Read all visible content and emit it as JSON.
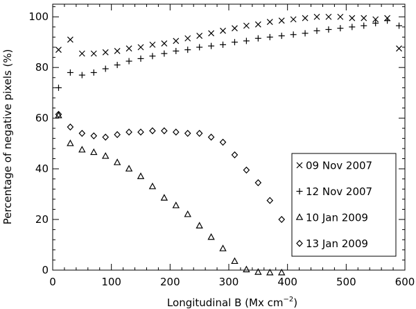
{
  "chart_data": {
    "type": "scatter",
    "xlabel": "Longitudinal B (Mx cm",
    "xlabel_sup": "−2",
    "xlabel_end": ")",
    "ylabel": "Percentage of negative pixels (%)",
    "xlim": [
      0,
      600
    ],
    "ylim": [
      0,
      105
    ],
    "xticks": [
      0,
      100,
      200,
      300,
      400,
      500,
      600
    ],
    "yticks": [
      0,
      20,
      40,
      60,
      80,
      100
    ],
    "grid": false,
    "legend_position": "bottom-right",
    "series": [
      {
        "name": "09 Nov 2007",
        "marker": "x",
        "x": [
          10,
          30,
          50,
          70,
          90,
          110,
          130,
          150,
          170,
          190,
          210,
          230,
          250,
          270,
          290,
          310,
          330,
          350,
          370,
          390,
          410,
          430,
          450,
          470,
          490,
          510,
          530,
          550,
          570,
          590
        ],
        "y": [
          87,
          91,
          85.5,
          85.5,
          86,
          86.5,
          87.5,
          88,
          89,
          89.5,
          90.5,
          91.5,
          92.5,
          93.5,
          94.5,
          95.5,
          96.5,
          97,
          98,
          98.5,
          99,
          99.5,
          100,
          100,
          100,
          99.5,
          99.5,
          99,
          99.5,
          87.5
        ]
      },
      {
        "name": "12 Nov 2007",
        "marker": "plus",
        "x": [
          10,
          30,
          50,
          70,
          90,
          110,
          130,
          150,
          170,
          190,
          210,
          230,
          250,
          270,
          290,
          310,
          330,
          350,
          370,
          390,
          410,
          430,
          450,
          470,
          490,
          510,
          530,
          550,
          570,
          590
        ],
        "y": [
          72,
          78,
          77,
          78,
          79.5,
          81,
          82.5,
          83.5,
          84.5,
          85.5,
          86.5,
          87,
          88,
          88.5,
          89,
          90,
          90.5,
          91.5,
          92,
          92.5,
          93,
          93.5,
          94.5,
          95,
          95.5,
          96,
          96.5,
          97.5,
          98.5,
          96.5
        ]
      },
      {
        "name": "10 Jan 2009",
        "marker": "triangle",
        "x": [
          10,
          30,
          50,
          70,
          90,
          110,
          130,
          150,
          170,
          190,
          210,
          230,
          250,
          270,
          290,
          310,
          330,
          350,
          370,
          390
        ],
        "y": [
          61,
          50,
          47.5,
          46.5,
          45,
          42.5,
          40,
          37,
          33,
          28.5,
          25.5,
          22,
          17.5,
          13,
          8.5,
          3.5,
          0.2,
          -0.8,
          -1,
          -1
        ]
      },
      {
        "name": "13 Jan 2009",
        "marker": "diamond",
        "x": [
          10,
          30,
          50,
          70,
          90,
          110,
          130,
          150,
          170,
          190,
          210,
          230,
          250,
          270,
          290,
          310,
          330,
          350,
          370,
          390
        ],
        "y": [
          61.5,
          56.5,
          54,
          53,
          52.5,
          53.5,
          54.5,
          54.5,
          55,
          55,
          54.5,
          54,
          54,
          52.5,
          50.5,
          45.5,
          39.5,
          34.5,
          27.5,
          20
        ]
      }
    ]
  }
}
